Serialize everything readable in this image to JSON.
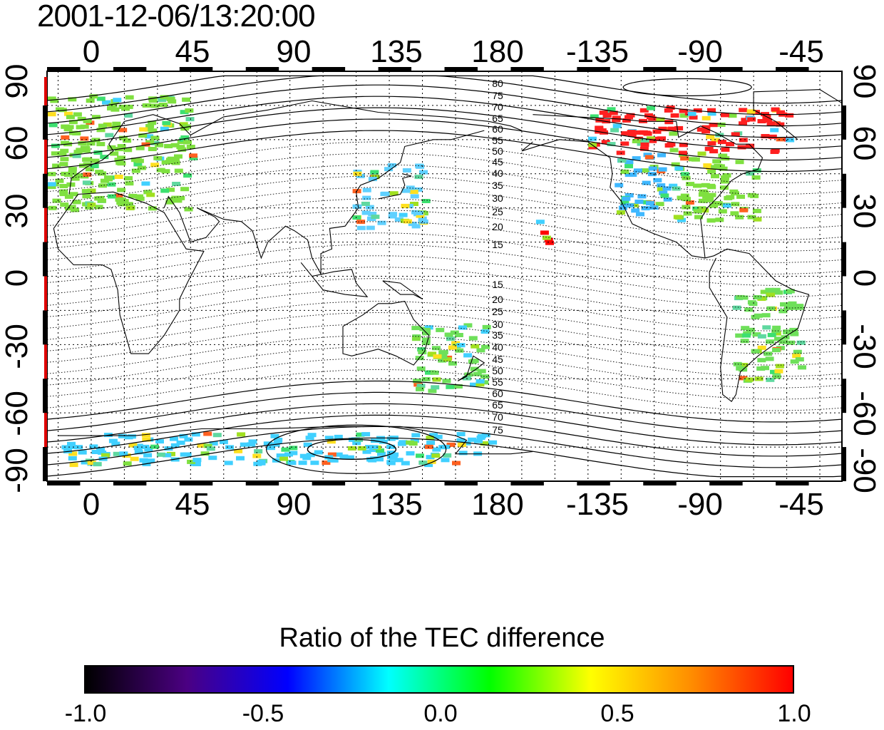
{
  "title": "2001-12-06/13:20:00",
  "map": {
    "lon_ticks_top": [
      "0",
      "45",
      "90",
      "135",
      "180",
      "-135",
      "-90",
      "-45"
    ],
    "lon_ticks_bottom": [
      "0",
      "45",
      "90",
      "135",
      "180",
      "-135",
      "-90",
      "-45"
    ],
    "lat_ticks_left": [
      "90",
      "60",
      "30",
      "0",
      "-30",
      "-60",
      "-90"
    ],
    "lat_ticks_right": [
      "90",
      "60",
      "30",
      "0",
      "-30",
      "-60",
      "-90"
    ],
    "lon_range": [
      -20,
      340
    ],
    "lat_range": [
      -90,
      90
    ],
    "contour_labels_north": [
      "80",
      "75",
      "70",
      "65",
      "60",
      "55",
      "50",
      "45",
      "40",
      "35",
      "30",
      "25",
      "20",
      "15"
    ],
    "contour_labels_south": [
      "15",
      "20",
      "25",
      "30",
      "35",
      "40",
      "45",
      "50",
      "55",
      "60",
      "65",
      "70",
      "75"
    ],
    "grid": true,
    "coastlines": true
  },
  "colorbar": {
    "title": "Ratio of the TEC difference",
    "ticks": [
      "-1.0",
      "-0.5",
      "0.0",
      "0.5",
      "1.0"
    ],
    "range": [
      -1.0,
      1.0
    ],
    "colors": [
      "#000000",
      "#4b0082",
      "#0000ff",
      "#00ffff",
      "#00ff00",
      "#ffff00",
      "#ff8c00",
      "#ff0000"
    ]
  },
  "regions": [
    {
      "name": "europe",
      "lon_range": [
        -20,
        45
      ],
      "lat_range": [
        30,
        80
      ],
      "color": "#7fe040"
    },
    {
      "name": "japan-east-asia",
      "lon_range": [
        118,
        150
      ],
      "lat_range": [
        22,
        50
      ],
      "color": "#5fd0ff"
    },
    {
      "name": "north-america-west",
      "lon_range": [
        237,
        262
      ],
      "lat_range": [
        28,
        55
      ],
      "color": "#3fb8ff"
    },
    {
      "name": "north-america-east",
      "lon_range": [
        262,
        300
      ],
      "lat_range": [
        25,
        55
      ],
      "color": "#7fe040"
    },
    {
      "name": "canada-arctic",
      "lon_range": [
        225,
        315
      ],
      "lat_range": [
        55,
        75
      ],
      "color": "#ff2020"
    },
    {
      "name": "hawaii",
      "lon_range": [
        200,
        207
      ],
      "lat_range": [
        15,
        25
      ],
      "color": "#ff0000"
    },
    {
      "name": "south-america",
      "lon_range": [
        290,
        320
      ],
      "lat_range": [
        -45,
        -5
      ],
      "color": "#6ee05a"
    },
    {
      "name": "australia-nz",
      "lon_range": [
        145,
        178
      ],
      "lat_range": [
        -50,
        -20
      ],
      "color": "#6ee05a"
    },
    {
      "name": "antarctica",
      "lon_range": [
        -15,
        180
      ],
      "lat_range": [
        -82,
        -68
      ],
      "color": "#40d0ff"
    }
  ]
}
